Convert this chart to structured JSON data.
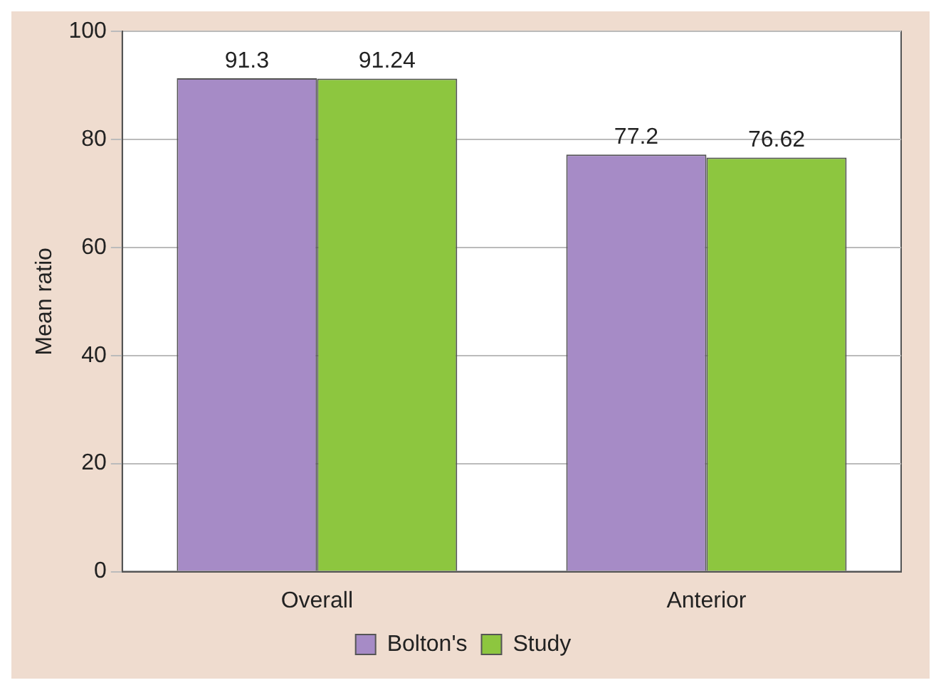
{
  "chart_data": {
    "type": "bar",
    "ylabel": "Mean ratio",
    "categories": [
      "Overall",
      "Anterior"
    ],
    "series": [
      {
        "name": "Bolton's",
        "color": "#a68bc6",
        "values": [
          91.3,
          77.2
        ]
      },
      {
        "name": "Study",
        "color": "#8dc63f",
        "values": [
          91.24,
          76.62
        ]
      }
    ],
    "ylim": [
      0,
      100
    ],
    "yticks": [
      0,
      20,
      40,
      60,
      80,
      100
    ],
    "grid": "y",
    "legend": "bottom",
    "data_labels": true
  }
}
